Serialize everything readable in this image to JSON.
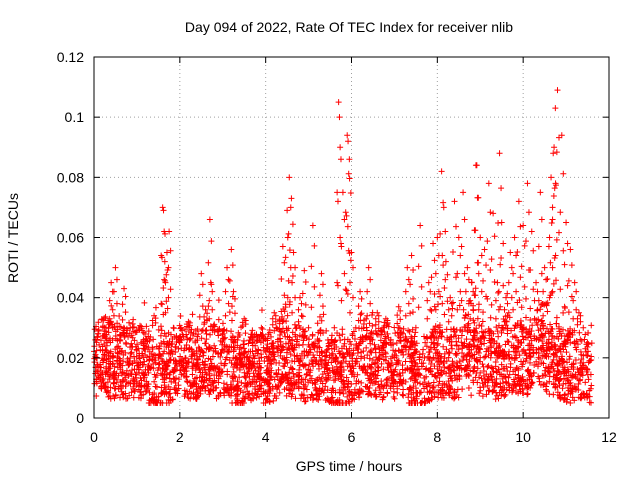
{
  "chart_data": {
    "type": "scatter",
    "title": "Day 094 of 2022, Rate Of TEC Index for receiver nlib",
    "xlabel": "GPS time / hours",
    "ylabel": "ROTI / TECUs",
    "xlim": [
      0,
      12
    ],
    "ylim": [
      0,
      0.12
    ],
    "x_ticks": [
      0,
      2,
      4,
      6,
      8,
      10,
      12
    ],
    "x_tick_labels": [
      "0",
      "2",
      "4",
      "6",
      "8",
      "10",
      "12"
    ],
    "y_ticks": [
      0,
      0.02,
      0.04,
      0.06,
      0.08,
      0.1,
      0.12
    ],
    "y_tick_labels": [
      "0",
      "0.02",
      "0.04",
      "0.06",
      "0.08",
      "0.1",
      "0.12"
    ],
    "grid": true,
    "marker": "plus",
    "color": "#ff0000",
    "series": [
      {
        "name": "ROTI",
        "x": [
          0.05,
          0.1,
          0.2,
          0.3,
          0.4,
          0.5,
          0.6,
          0.7,
          0.8,
          0.9,
          1.0,
          1.1,
          1.2,
          1.3,
          1.4,
          1.5,
          1.6,
          1.62,
          1.65,
          1.7,
          1.75,
          1.8,
          1.85,
          1.9,
          2.0,
          2.1,
          2.2,
          2.3,
          2.4,
          2.5,
          2.6,
          2.7,
          2.72,
          2.8,
          2.9,
          3.0,
          3.1,
          3.2,
          3.25,
          3.3,
          3.4,
          3.5,
          3.6,
          3.7,
          3.8,
          3.9,
          4.0,
          4.1,
          4.2,
          4.3,
          4.4,
          4.5,
          4.55,
          4.6,
          4.65,
          4.7,
          4.8,
          4.9,
          5.0,
          5.1,
          5.2,
          5.3,
          5.4,
          5.5,
          5.6,
          5.7,
          5.72,
          5.8,
          5.9,
          5.92,
          5.95,
          6.0,
          6.1,
          6.2,
          6.3,
          6.4,
          6.5,
          6.6,
          6.7,
          6.8,
          6.9,
          7.0,
          7.1,
          7.2,
          7.3,
          7.4,
          7.5,
          7.6,
          7.7,
          7.8,
          7.9,
          8.0,
          8.1,
          8.15,
          8.2,
          8.3,
          8.4,
          8.5,
          8.6,
          8.7,
          8.8,
          8.9,
          8.92,
          9.0,
          9.1,
          9.2,
          9.3,
          9.4,
          9.45,
          9.5,
          9.6,
          9.7,
          9.8,
          9.9,
          10.0,
          10.1,
          10.2,
          10.3,
          10.4,
          10.5,
          10.6,
          10.65,
          10.7,
          10.72,
          10.75,
          10.8,
          10.9,
          11.0,
          11.1,
          11.2,
          11.3,
          11.4,
          11.5
        ],
        "y": [
          0.02,
          0.028,
          0.015,
          0.024,
          0.045,
          0.05,
          0.022,
          0.043,
          0.018,
          0.03,
          0.012,
          0.025,
          0.016,
          0.022,
          0.034,
          0.02,
          0.07,
          0.069,
          0.052,
          0.055,
          0.062,
          0.012,
          0.03,
          0.018,
          0.026,
          0.014,
          0.032,
          0.022,
          0.017,
          0.048,
          0.036,
          0.066,
          0.045,
          0.024,
          0.015,
          0.028,
          0.05,
          0.056,
          0.042,
          0.02,
          0.016,
          0.033,
          0.018,
          0.026,
          0.014,
          0.03,
          0.022,
          0.019,
          0.035,
          0.016,
          0.057,
          0.069,
          0.08,
          0.073,
          0.055,
          0.027,
          0.04,
          0.049,
          0.03,
          0.064,
          0.022,
          0.048,
          0.018,
          0.025,
          0.03,
          0.105,
          0.1,
          0.075,
          0.094,
          0.092,
          0.086,
          0.055,
          0.03,
          0.042,
          0.02,
          0.05,
          0.028,
          0.035,
          0.018,
          0.033,
          0.025,
          0.021,
          0.037,
          0.028,
          0.05,
          0.054,
          0.03,
          0.064,
          0.02,
          0.045,
          0.058,
          0.06,
          0.082,
          0.07,
          0.052,
          0.04,
          0.072,
          0.06,
          0.075,
          0.05,
          0.045,
          0.084,
          0.084,
          0.06,
          0.056,
          0.078,
          0.068,
          0.045,
          0.088,
          0.065,
          0.04,
          0.055,
          0.06,
          0.072,
          0.064,
          0.078,
          0.062,
          0.045,
          0.075,
          0.05,
          0.057,
          0.08,
          0.088,
          0.09,
          0.103,
          0.109,
          0.094,
          0.065,
          0.056,
          0.045,
          0.035,
          0.03,
          0.025
        ]
      }
    ],
    "background_density": {
      "description": "dense band of ROTI samples across the full time range",
      "x_range": [
        0,
        11.6
      ],
      "y_band": [
        0.006,
        0.03
      ],
      "samples": 3200
    }
  }
}
